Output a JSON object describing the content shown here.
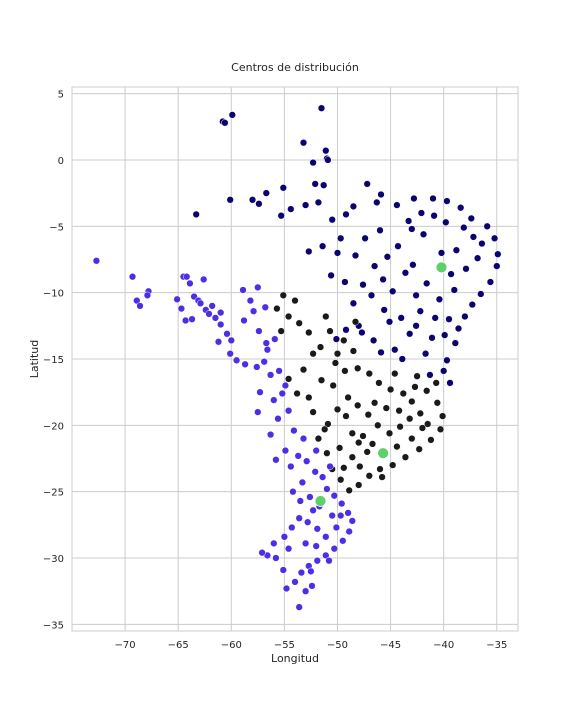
{
  "chart_data": {
    "type": "scatter",
    "title": "Centros de distribución",
    "xlabel": "Longitud",
    "ylabel": "Latitud",
    "xlim": [
      -75,
      -33
    ],
    "ylim": [
      -35.5,
      5.5
    ],
    "xticks": [
      -70,
      -65,
      -60,
      -55,
      -50,
      -45,
      -40,
      -35
    ],
    "yticks": [
      5,
      0,
      -5,
      -10,
      -15,
      -20,
      -25,
      -30,
      -35
    ],
    "grid": true,
    "colors": {
      "navy": "#0b0470",
      "black": "#1a1a1a",
      "blue": "#4c2ee6",
      "center": "#5fcf6a"
    },
    "series": [
      {
        "color": "#0b0470",
        "values": [
          [
            -51.5,
            3.9
          ],
          [
            -59.9,
            3.4
          ],
          [
            -60.8,
            2.9
          ],
          [
            -60.6,
            2.8
          ],
          [
            -53.2,
            1.3
          ],
          [
            -51.1,
            0.7
          ],
          [
            -51.0,
            0.1
          ],
          [
            -50.9,
            0.0
          ],
          [
            -52.3,
            -0.2
          ],
          [
            -51.3,
            -1.9
          ],
          [
            -52.1,
            -1.8
          ],
          [
            -55.1,
            -2.1
          ],
          [
            -56.7,
            -2.5
          ],
          [
            -58.0,
            -3.0
          ],
          [
            -60.1,
            -3.0
          ],
          [
            -57.4,
            -3.3
          ],
          [
            -55.3,
            -4.2
          ],
          [
            -63.3,
            -4.1
          ],
          [
            -54.4,
            -3.7
          ],
          [
            -53.0,
            -3.4
          ],
          [
            -51.8,
            -3.2
          ],
          [
            -50.5,
            -4.5
          ],
          [
            -49.2,
            -4.1
          ],
          [
            -48.5,
            -3.5
          ],
          [
            -49.7,
            -5.9
          ],
          [
            -50.0,
            -7.0
          ],
          [
            -51.4,
            -6.5
          ],
          [
            -52.7,
            -6.9
          ],
          [
            -50.6,
            -8.7
          ],
          [
            -49.3,
            -9.2
          ],
          [
            -48.5,
            -10.8
          ],
          [
            -48.0,
            -12.5
          ],
          [
            -49.2,
            -12.8
          ],
          [
            -50.1,
            -13.5
          ],
          [
            -47.7,
            -13.0
          ],
          [
            -46.6,
            -13.6
          ],
          [
            -45.9,
            -14.5
          ],
          [
            -44.6,
            -14.3
          ],
          [
            -43.9,
            -15.0
          ],
          [
            -40.0,
            -15.9
          ],
          [
            -39.4,
            -16.8
          ],
          [
            -39.7,
            -15.1
          ],
          [
            -38.9,
            -13.8
          ],
          [
            -41.1,
            -13.4
          ],
          [
            -42.6,
            -12.5
          ],
          [
            -44.0,
            -11.9
          ],
          [
            -45.6,
            -11.3
          ],
          [
            -46.8,
            -10.2
          ],
          [
            -47.6,
            -9.4
          ],
          [
            -46.5,
            -8.0
          ],
          [
            -45.3,
            -7.3
          ],
          [
            -44.3,
            -6.5
          ],
          [
            -43.0,
            -5.2
          ],
          [
            -44.4,
            -3.4
          ],
          [
            -45.9,
            -2.6
          ],
          [
            -47.2,
            -1.8
          ],
          [
            -46.3,
            -3.2
          ],
          [
            -42.8,
            -2.9
          ],
          [
            -41.0,
            -2.9
          ],
          [
            -39.7,
            -3.1
          ],
          [
            -38.4,
            -3.6
          ],
          [
            -37.4,
            -4.4
          ],
          [
            -35.9,
            -5.0
          ],
          [
            -35.2,
            -5.9
          ],
          [
            -34.9,
            -7.1
          ],
          [
            -35.0,
            -8.0
          ],
          [
            -35.6,
            -9.2
          ],
          [
            -36.5,
            -10.1
          ],
          [
            -37.3,
            -10.9
          ],
          [
            -38.0,
            -11.8
          ],
          [
            -38.6,
            -12.7
          ],
          [
            -40.4,
            -10.5
          ],
          [
            -41.6,
            -9.3
          ],
          [
            -42.9,
            -7.9
          ],
          [
            -40.2,
            -7.0
          ],
          [
            -38.8,
            -6.8
          ],
          [
            -37.9,
            -8.2
          ],
          [
            -39.0,
            -9.8
          ],
          [
            -41.9,
            -5.6
          ],
          [
            -43.6,
            -8.5
          ],
          [
            -44.8,
            -9.9
          ],
          [
            -42.2,
            -11.4
          ],
          [
            -36.4,
            -6.3
          ],
          [
            -37.2,
            -5.8
          ],
          [
            -38.1,
            -5.1
          ],
          [
            -39.8,
            -4.7
          ],
          [
            -40.9,
            -4.2
          ],
          [
            -42.1,
            -4.0
          ],
          [
            -43.3,
            -4.6
          ],
          [
            -36.8,
            -7.4
          ],
          [
            -39.3,
            -8.6
          ],
          [
            -40.8,
            -11.9
          ],
          [
            -39.9,
            -13.2
          ],
          [
            -41.7,
            -14.6
          ],
          [
            -43.2,
            -13.1
          ],
          [
            -45.1,
            -12.2
          ],
          [
            -46.0,
            -5.3
          ],
          [
            -47.4,
            -5.9
          ],
          [
            -48.3,
            -7.2
          ],
          [
            -45.7,
            -9.0
          ],
          [
            -42.6,
            -10.2
          ],
          [
            -41.3,
            -16.2
          ],
          [
            -39.5,
            -12.0
          ]
        ]
      },
      {
        "color": "#1a1a1a",
        "values": [
          [
            -55.1,
            -10.2
          ],
          [
            -54.0,
            -10.6
          ],
          [
            -55.7,
            -11.2
          ],
          [
            -54.6,
            -11.8
          ],
          [
            -53.6,
            -12.3
          ],
          [
            -55.3,
            -12.9
          ],
          [
            -51.1,
            -11.8
          ],
          [
            -50.7,
            -12.9
          ],
          [
            -51.6,
            -14.1
          ],
          [
            -52.3,
            -14.6
          ],
          [
            -50.2,
            -15.3
          ],
          [
            -49.3,
            -15.9
          ],
          [
            -48.1,
            -15.7
          ],
          [
            -47.0,
            -16.1
          ],
          [
            -46.1,
            -16.8
          ],
          [
            -45.0,
            -17.3
          ],
          [
            -43.8,
            -17.6
          ],
          [
            -42.7,
            -17.1
          ],
          [
            -41.6,
            -17.4
          ],
          [
            -40.6,
            -18.3
          ],
          [
            -40.1,
            -19.3
          ],
          [
            -40.3,
            -20.3
          ],
          [
            -41.2,
            -21.1
          ],
          [
            -42.3,
            -21.8
          ],
          [
            -43.6,
            -22.4
          ],
          [
            -44.8,
            -23.0
          ],
          [
            -46.0,
            -23.3
          ],
          [
            -47.0,
            -23.8
          ],
          [
            -48.0,
            -24.5
          ],
          [
            -48.9,
            -24.9
          ],
          [
            -49.7,
            -24.1
          ],
          [
            -50.5,
            -23.3
          ],
          [
            -51.0,
            -22.1
          ],
          [
            -51.8,
            -21.0
          ],
          [
            -50.9,
            -19.9
          ],
          [
            -50.0,
            -18.8
          ],
          [
            -49.0,
            -17.9
          ],
          [
            -48.1,
            -18.5
          ],
          [
            -47.1,
            -19.2
          ],
          [
            -46.2,
            -20.0
          ],
          [
            -45.1,
            -20.6
          ],
          [
            -44.1,
            -20.1
          ],
          [
            -43.2,
            -19.5
          ],
          [
            -42.2,
            -19.1
          ],
          [
            -42.0,
            -20.2
          ],
          [
            -43.0,
            -21.0
          ],
          [
            -44.4,
            -21.6
          ],
          [
            -45.7,
            -22.1
          ],
          [
            -47.2,
            -22.0
          ],
          [
            -48.6,
            -22.4
          ],
          [
            -49.8,
            -21.7
          ],
          [
            -48.6,
            -20.6
          ],
          [
            -47.6,
            -20.8
          ],
          [
            -46.5,
            -18.3
          ],
          [
            -45.4,
            -18.7
          ],
          [
            -44.2,
            -18.9
          ],
          [
            -43.0,
            -18.2
          ],
          [
            -49.4,
            -13.6
          ],
          [
            -48.5,
            -14.4
          ],
          [
            -53.2,
            -15.8
          ],
          [
            -54.6,
            -16.5
          ],
          [
            -53.8,
            -17.6
          ],
          [
            -52.7,
            -17.9
          ],
          [
            -51.5,
            -16.6
          ],
          [
            -50.4,
            -17.0
          ],
          [
            -49.2,
            -19.3
          ],
          [
            -48.0,
            -21.3
          ],
          [
            -46.7,
            -21.4
          ],
          [
            -45.8,
            -23.9
          ],
          [
            -47.9,
            -23.1
          ],
          [
            -49.4,
            -23.2
          ],
          [
            -51.2,
            -20.3
          ],
          [
            -52.3,
            -19.0
          ],
          [
            -44.6,
            -16.1
          ],
          [
            -41.5,
            -19.9
          ],
          [
            -42.5,
            -16.3
          ],
          [
            -40.7,
            -16.8
          ],
          [
            -50.0,
            -14.6
          ],
          [
            -48.3,
            -12.2
          ],
          [
            -52.7,
            -13.0
          ]
        ]
      },
      {
        "color": "#4c2ee6",
        "values": [
          [
            -72.7,
            -7.6
          ],
          [
            -69.3,
            -8.8
          ],
          [
            -68.9,
            -10.6
          ],
          [
            -68.6,
            -11.0
          ],
          [
            -67.8,
            -9.9
          ],
          [
            -67.9,
            -10.2
          ],
          [
            -64.5,
            -8.8
          ],
          [
            -64.2,
            -8.8
          ],
          [
            -63.9,
            -9.3
          ],
          [
            -63.5,
            -10.3
          ],
          [
            -63.1,
            -10.6
          ],
          [
            -62.6,
            -9.0
          ],
          [
            -62.9,
            -10.8
          ],
          [
            -62.4,
            -11.3
          ],
          [
            -62.1,
            -11.6
          ],
          [
            -61.8,
            -11.0
          ],
          [
            -61.5,
            -11.9
          ],
          [
            -61.0,
            -11.5
          ],
          [
            -64.7,
            -11.2
          ],
          [
            -65.1,
            -10.5
          ],
          [
            -64.3,
            -12.1
          ],
          [
            -63.7,
            -12.0
          ],
          [
            -61.0,
            -12.4
          ],
          [
            -60.4,
            -13.1
          ],
          [
            -61.2,
            -13.7
          ],
          [
            -60.1,
            -14.6
          ],
          [
            -59.5,
            -15.1
          ],
          [
            -58.7,
            -15.4
          ],
          [
            -57.6,
            -15.6
          ],
          [
            -56.9,
            -15.2
          ],
          [
            -56.3,
            -16.2
          ],
          [
            -55.5,
            -15.9
          ],
          [
            -58.2,
            -10.6
          ],
          [
            -58.9,
            -9.8
          ],
          [
            -57.5,
            -9.6
          ],
          [
            -56.8,
            -11.1
          ],
          [
            -58.8,
            -12.1
          ],
          [
            -57.4,
            -12.9
          ],
          [
            -56.6,
            -14.3
          ],
          [
            -55.9,
            -13.5
          ],
          [
            -55.2,
            -17.6
          ],
          [
            -54.6,
            -18.9
          ],
          [
            -55.6,
            -19.5
          ],
          [
            -56.3,
            -20.7
          ],
          [
            -57.5,
            -19.0
          ],
          [
            -54.1,
            -20.4
          ],
          [
            -53.2,
            -21.0
          ],
          [
            -54.9,
            -21.9
          ],
          [
            -55.8,
            -22.6
          ],
          [
            -54.4,
            -23.1
          ],
          [
            -53.7,
            -22.3
          ],
          [
            -52.9,
            -22.7
          ],
          [
            -52.1,
            -23.5
          ],
          [
            -51.4,
            -23.9
          ],
          [
            -53.3,
            -24.3
          ],
          [
            -54.2,
            -25.0
          ],
          [
            -53.5,
            -25.7
          ],
          [
            -52.6,
            -25.4
          ],
          [
            -51.0,
            -24.8
          ],
          [
            -50.3,
            -25.3
          ],
          [
            -49.6,
            -25.9
          ],
          [
            -49.0,
            -26.6
          ],
          [
            -48.6,
            -27.2
          ],
          [
            -48.9,
            -28.0
          ],
          [
            -49.5,
            -28.7
          ],
          [
            -50.3,
            -29.3
          ],
          [
            -51.1,
            -29.8
          ],
          [
            -51.9,
            -30.2
          ],
          [
            -52.7,
            -30.6
          ],
          [
            -53.4,
            -31.1
          ],
          [
            -54.0,
            -31.8
          ],
          [
            -53.0,
            -32.5
          ],
          [
            -52.4,
            -32.1
          ],
          [
            -53.6,
            -33.7
          ],
          [
            -55.1,
            -30.9
          ],
          [
            -55.8,
            -30.0
          ],
          [
            -56.6,
            -29.8
          ],
          [
            -57.1,
            -29.6
          ],
          [
            -56.0,
            -28.9
          ],
          [
            -55.0,
            -28.4
          ],
          [
            -54.3,
            -27.7
          ],
          [
            -53.6,
            -27.0
          ],
          [
            -52.8,
            -27.3
          ],
          [
            -51.9,
            -27.8
          ],
          [
            -51.1,
            -28.4
          ],
          [
            -50.5,
            -26.8
          ],
          [
            -51.7,
            -26.1
          ],
          [
            -52.3,
            -26.4
          ],
          [
            -53.0,
            -28.9
          ],
          [
            -54.6,
            -29.3
          ],
          [
            -52.0,
            -29.1
          ],
          [
            -50.8,
            -30.2
          ],
          [
            -54.8,
            -32.3
          ],
          [
            -52.5,
            -31.0
          ],
          [
            -50.1,
            -27.7
          ],
          [
            -49.7,
            -26.8
          ],
          [
            -50.7,
            -23.1
          ],
          [
            -52.0,
            -21.9
          ],
          [
            -54.9,
            -17.0
          ],
          [
            -57.3,
            -17.5
          ],
          [
            -56.0,
            -18.1
          ],
          [
            -56.7,
            -13.8
          ],
          [
            -60.0,
            -13.6
          ],
          [
            -57.9,
            -11.4
          ]
        ]
      },
      {
        "color": "#5fcf6a",
        "values": [
          [
            -40.2,
            -8.1
          ],
          [
            -45.7,
            -22.1
          ],
          [
            -51.6,
            -25.7
          ]
        ]
      }
    ]
  }
}
